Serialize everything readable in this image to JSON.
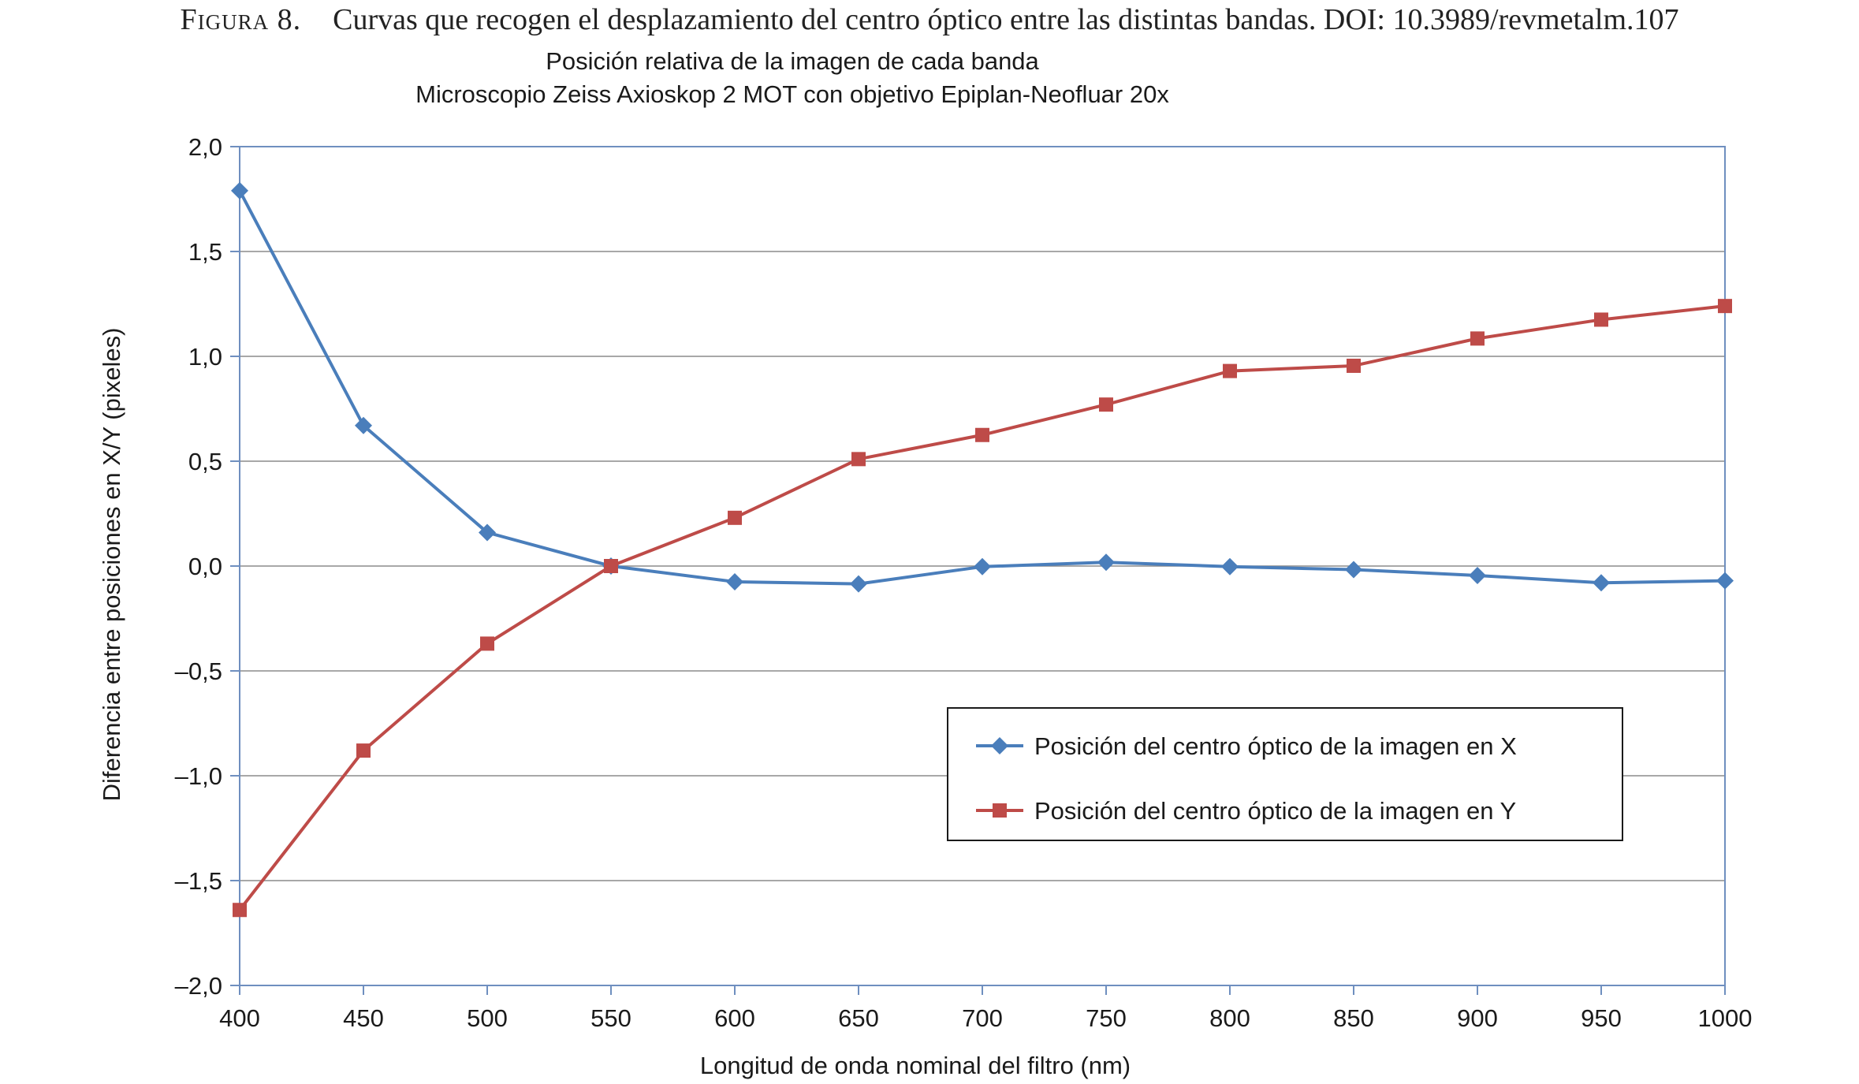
{
  "caption": {
    "label": "Figura 8.",
    "text": "Curvas que recogen el desplazamiento del centro óptico entre las distintas bandas. DOI: 10.3989/revmetalm.107"
  },
  "chart_data": {
    "type": "line",
    "title": "Posición relativa de la imagen de cada banda",
    "subtitle": "Microscopio Zeiss Axioskop 2 MOT con objetivo Epiplan-Neofluar 20x",
    "xlabel": "Longitud de onda nominal del filtro (nm)",
    "ylabel": "Diferencia entre posiciones en X/Y (pixeles)",
    "x": [
      400,
      450,
      500,
      550,
      600,
      650,
      700,
      750,
      800,
      850,
      900,
      950,
      1000
    ],
    "xlim": [
      400,
      1000
    ],
    "ylim": [
      -2.0,
      2.0
    ],
    "xticks": [
      "400",
      "450",
      "500",
      "550",
      "600",
      "650",
      "700",
      "750",
      "800",
      "850",
      "900",
      "950",
      "1000"
    ],
    "yticks": [
      {
        "value": 2.0,
        "label": "2,0"
      },
      {
        "value": 1.5,
        "label": "1,5"
      },
      {
        "value": 1.0,
        "label": "1,0"
      },
      {
        "value": 0.5,
        "label": "0,5"
      },
      {
        "value": 0.0,
        "label": "0,0"
      },
      {
        "value": -0.5,
        "label": "–0,5"
      },
      {
        "value": -1.0,
        "label": "–1,0"
      },
      {
        "value": -1.5,
        "label": "–1,5"
      },
      {
        "value": -2.0,
        "label": "–2,0"
      }
    ],
    "grid": true,
    "legend_position": "lower-right",
    "series": [
      {
        "name": "Posición del centro óptico de la imagen en X",
        "color": "#4a7ebb",
        "marker": "diamond",
        "values": [
          1.79,
          0.67,
          0.16,
          0.0,
          -0.075,
          -0.085,
          -0.003,
          0.018,
          -0.003,
          -0.017,
          -0.045,
          -0.08,
          -0.07
        ]
      },
      {
        "name": "Posición del centro óptico de la imagen en Y",
        "color": "#be4b48",
        "marker": "square",
        "values": [
          -1.64,
          -0.88,
          -0.37,
          0.0,
          0.23,
          0.51,
          0.625,
          0.77,
          0.93,
          0.955,
          1.085,
          1.175,
          1.24
        ]
      }
    ]
  }
}
